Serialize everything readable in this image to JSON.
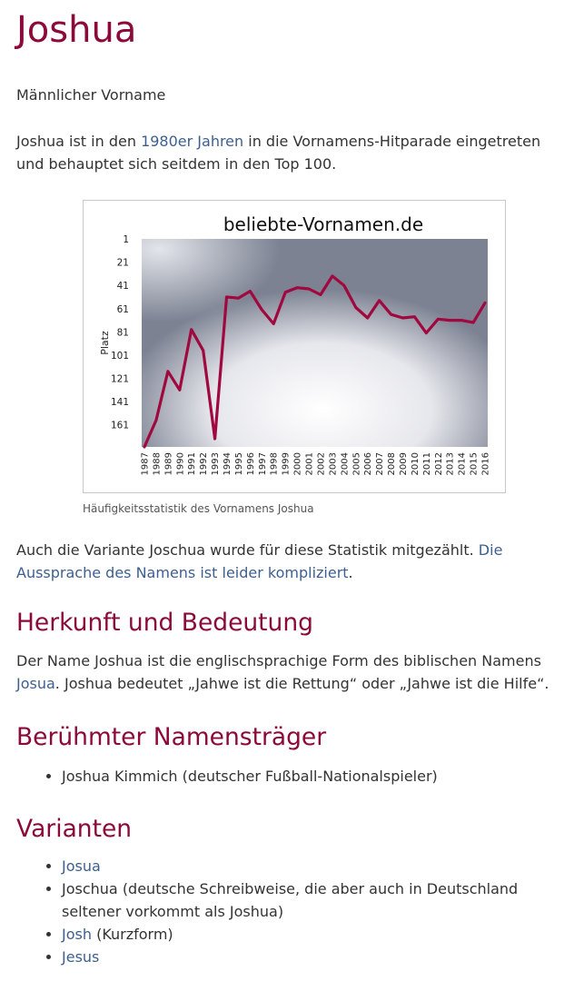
{
  "page": {
    "title": "Joshua",
    "subtitle": "Männlicher Vorname",
    "intro": {
      "before": "Joshua ist in den ",
      "link": "1980er Jahren",
      "after": " in die Vornamens-Hitparade eingetreten und behauptet sich seitdem in den Top 100."
    },
    "figure_caption": "Häufigkeitsstatistik des Vornamens Joshua",
    "variant_note": {
      "text": "Auch die Variante Joschua wurde für diese Statistik mitgezählt. ",
      "link": "Die Aussprache des Namens ist leider kompliziert",
      "after": "."
    }
  },
  "sections": {
    "herkunft": {
      "heading": "Herkunft und Bedeutung",
      "before": "Der Name Joshua ist die englischsprachige Form des biblischen Namens ",
      "link": "Josua",
      "after": ". Joshua bedeutet „Jahwe ist die Rettung“ oder „Jahwe ist die Hilfe“."
    },
    "beruehmt": {
      "heading": "Berühmter Namensträger",
      "items": [
        "Joshua Kimmich (deutscher Fußball-Nationalspieler)"
      ]
    },
    "varianten": {
      "heading": "Varianten",
      "item1_link": "Josua",
      "item2_text": "Joschua (deutsche Schreibweise, die aber auch in Deutschland seltener vorkommt als Joshua)",
      "item3_link": "Josh",
      "item3_after": " (Kurzform)",
      "item4_link": "Jesus"
    }
  },
  "colors": {
    "heading": "#8b0a3a",
    "link": "#3d5f8f",
    "series": "#a0093f"
  },
  "chart_data": {
    "type": "line",
    "title": "beliebte-Vornamen.de",
    "ylabel": "Platz",
    "xlabel": "",
    "y_inverted": true,
    "ylim": [
      1,
      180
    ],
    "yticks": [
      1,
      21,
      41,
      61,
      81,
      101,
      121,
      141,
      161
    ],
    "x": [
      "1987",
      "1988",
      "1989",
      "1990",
      "1991",
      "1992",
      "1993",
      "1994",
      "1995",
      "1996",
      "1997",
      "1998",
      "1999",
      "2000",
      "2001",
      "2002",
      "2003",
      "2004",
      "2005",
      "2006",
      "2007",
      "2008",
      "2009",
      "2010",
      "2011",
      "2012",
      "2013",
      "2014",
      "2015",
      "2016"
    ],
    "series": [
      {
        "values": [
          180,
          157,
          115,
          131,
          79,
          97,
          173,
          51,
          52,
          46,
          62,
          74,
          47,
          43,
          44,
          49,
          33,
          41,
          60,
          69,
          54,
          66,
          69,
          68,
          82,
          70,
          71,
          71,
          73,
          56
        ]
      }
    ],
    "grid": false,
    "legend": "none"
  }
}
